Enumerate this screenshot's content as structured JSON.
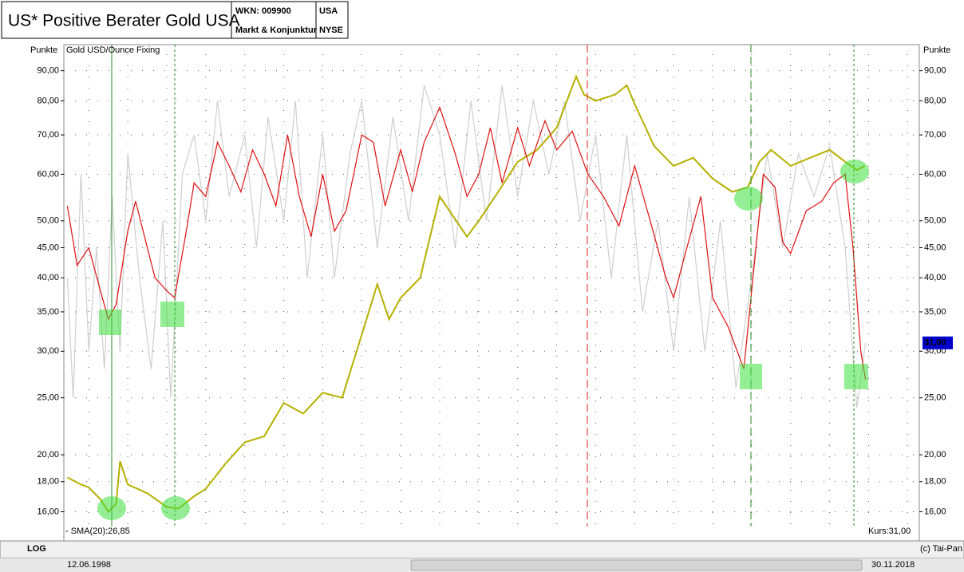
{
  "header": {
    "title": "US* Positive Berater Gold USA",
    "wkn": "WKN: 009900",
    "group": "Markt & Konjunktur",
    "country": "USA",
    "exchange": "NYSE"
  },
  "footer": {
    "scale": "LOG",
    "start": "12.06.1998",
    "end": "30.11.2018",
    "copyright": "(c) Tai-Pan"
  },
  "chart_data": {
    "type": "line",
    "log": true,
    "grid": true,
    "ylabel": "Punkte",
    "ylim": [
      15.1,
      96
    ],
    "xlim": [
      1998.36,
      2020.26
    ],
    "yticks": [
      {
        "value": 16,
        "label": "16,00"
      },
      {
        "value": 18,
        "label": "18,00"
      },
      {
        "value": 20,
        "label": "20,00"
      },
      {
        "value": 25,
        "label": "25,00"
      },
      {
        "value": 30,
        "label": "30,00"
      },
      {
        "value": 35,
        "label": "35,00"
      },
      {
        "value": 40,
        "label": "40,00"
      },
      {
        "value": 45,
        "label": "45,00"
      },
      {
        "value": 50,
        "label": "50,00"
      },
      {
        "value": 60,
        "label": "60,00"
      },
      {
        "value": 70,
        "label": "70,00"
      },
      {
        "value": 80,
        "label": "80,00"
      },
      {
        "value": 90,
        "label": "90,00"
      }
    ],
    "xticks": [
      1998,
      1999,
      2000,
      2001,
      2002,
      2003,
      2004,
      2005,
      2006,
      2007,
      2008,
      2009,
      2010,
      2011,
      2012,
      2013,
      2014,
      2015,
      2016,
      2017,
      2018,
      2019,
      2020
    ],
    "kurs": "Kurs:31,00",
    "badge": {
      "value": 31,
      "label": "31,00"
    },
    "series": [
      {
        "color": "#cfcfcf",
        "x": [
          1998.45,
          1998.6,
          1998.8,
          1999.0,
          1999.2,
          1999.4,
          1999.6,
          1999.8,
          2000.0,
          2000.3,
          2000.6,
          2000.9,
          2001.1,
          2001.4,
          2001.7,
          2002.0,
          2002.3,
          2002.6,
          2003.0,
          2003.3,
          2003.6,
          2004.0,
          2004.3,
          2004.6,
          2005.0,
          2005.3,
          2005.7,
          2006.0,
          2006.4,
          2006.8,
          2007.2,
          2007.6,
          2008.0,
          2008.4,
          2008.8,
          2009.2,
          2009.6,
          2010.0,
          2010.4,
          2010.8,
          2011.2,
          2011.6,
          2012.0,
          2012.4,
          2012.8,
          2013.2,
          2013.6,
          2014.0,
          2014.4,
          2014.8,
          2015.2,
          2015.6,
          2016.0,
          2016.4,
          2016.8,
          2017.2,
          2017.6,
          2018.0,
          2018.4,
          2018.7,
          2018.92
        ],
        "values": [
          40,
          25,
          60,
          30,
          45,
          28,
          55,
          30,
          65,
          40,
          28,
          50,
          25,
          60,
          70,
          50,
          80,
          55,
          70,
          45,
          75,
          50,
          80,
          40,
          70,
          40,
          65,
          80,
          45,
          75,
          50,
          85,
          70,
          45,
          80,
          50,
          85,
          55,
          80,
          60,
          80,
          50,
          70,
          40,
          70,
          35,
          50,
          30,
          55,
          30,
          50,
          26,
          40,
          65,
          45,
          65,
          55,
          67,
          45,
          24,
          31
        ]
      },
      {
        "name": "Gold USD/Ounce Fixing",
        "color": "#b5b000",
        "x": [
          1998.45,
          1998.8,
          1999.0,
          1999.3,
          1999.5,
          1999.7,
          1999.8,
          2000.0,
          2000.5,
          2001.0,
          2001.3,
          2001.7,
          2002.0,
          2002.5,
          2003.0,
          2003.5,
          2004.0,
          2004.5,
          2005.0,
          2005.5,
          2006.0,
          2006.4,
          2006.7,
          2007.0,
          2007.5,
          2008.0,
          2008.7,
          2009.0,
          2009.5,
          2010.0,
          2010.5,
          2011.0,
          2011.5,
          2011.7,
          2012.0,
          2012.5,
          2012.8,
          2013.0,
          2013.5,
          2014.0,
          2014.5,
          2015.0,
          2015.5,
          2015.9,
          2016.2,
          2016.5,
          2017.0,
          2017.5,
          2018.0,
          2018.4,
          2018.7,
          2018.9
        ],
        "values": [
          18.3,
          17.8,
          17.6,
          16.8,
          16.0,
          16.5,
          19.5,
          17.8,
          17.2,
          16.3,
          16.2,
          17.0,
          17.5,
          19.3,
          21.0,
          21.5,
          24.5,
          23.5,
          25.5,
          25.0,
          32.0,
          39.0,
          34.0,
          37.0,
          40.0,
          55.0,
          47.0,
          50.0,
          56.0,
          63.0,
          66.0,
          72.0,
          88.0,
          82.0,
          80.0,
          82.0,
          85.0,
          79.0,
          67.0,
          62.0,
          64.0,
          59.0,
          56.0,
          57.0,
          63.0,
          66.0,
          62.0,
          64.0,
          66.0,
          63.0,
          61.0,
          62.0
        ]
      },
      {
        "name": "- SMA(20):26,85",
        "color": "#e01010",
        "x": [
          1998.45,
          1998.7,
          1999.0,
          1999.3,
          1999.5,
          1999.7,
          2000.0,
          2000.2,
          2000.5,
          2000.7,
          2001.0,
          2001.2,
          2001.5,
          2001.7,
          2002.0,
          2002.3,
          2002.6,
          2002.9,
          2003.2,
          2003.5,
          2003.8,
          2004.1,
          2004.4,
          2004.7,
          2005.0,
          2005.3,
          2005.6,
          2006.0,
          2006.3,
          2006.6,
          2007.0,
          2007.3,
          2007.6,
          2008.0,
          2008.4,
          2008.7,
          2009.0,
          2009.3,
          2009.6,
          2010.0,
          2010.3,
          2010.7,
          2011.0,
          2011.4,
          2011.8,
          2012.2,
          2012.6,
          2013.0,
          2013.4,
          2013.8,
          2014.0,
          2014.3,
          2014.7,
          2015.0,
          2015.4,
          2015.8,
          2016.0,
          2016.3,
          2016.6,
          2016.8,
          2017.0,
          2017.4,
          2017.8,
          2018.1,
          2018.4,
          2018.6,
          2018.8,
          2018.92
        ],
        "values": [
          53,
          42,
          45,
          38,
          34,
          36,
          48,
          54,
          45,
          40,
          38,
          37,
          48,
          58,
          55,
          68,
          62,
          56,
          66,
          60,
          53,
          70,
          55,
          47,
          60,
          48,
          52,
          70,
          68,
          53,
          66,
          56,
          68,
          78,
          65,
          55,
          60,
          72,
          58,
          72,
          62,
          74,
          66,
          71,
          60,
          55,
          49,
          62,
          50,
          40,
          37,
          44,
          55,
          37,
          33,
          28,
          38,
          60,
          57,
          46,
          44,
          52,
          54,
          58,
          60,
          45,
          30,
          26.85
        ]
      }
    ]
  }
}
